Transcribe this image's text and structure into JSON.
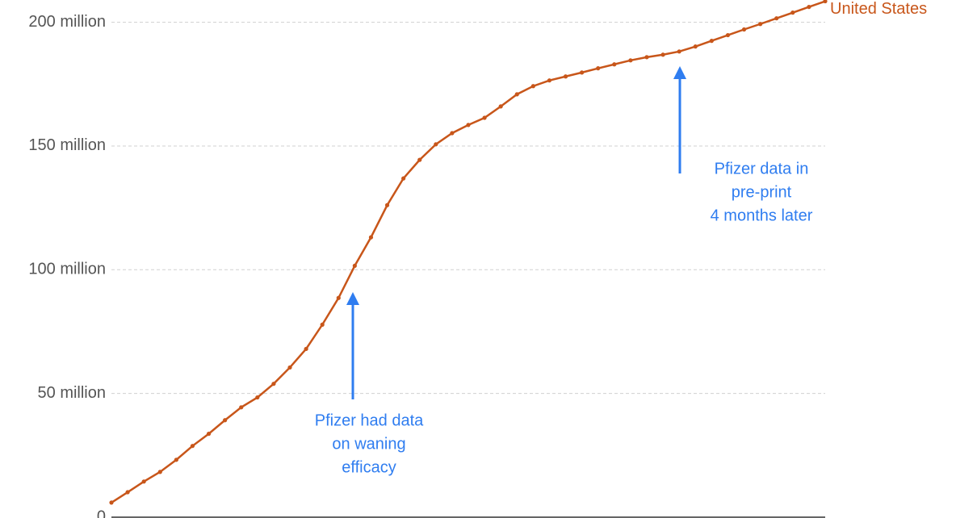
{
  "chart_data": {
    "type": "line",
    "categories": [
      null,
      null,
      null,
      null,
      null,
      null,
      null,
      null,
      null,
      null,
      null,
      null,
      null,
      null,
      null,
      null,
      null,
      null,
      null,
      null,
      null,
      null,
      null,
      null,
      null,
      null,
      null,
      null,
      null,
      null,
      null,
      null,
      null,
      null,
      null,
      null,
      null,
      null,
      null,
      null,
      null,
      null,
      null,
      null,
      null
    ],
    "series": [
      {
        "name": "United States",
        "color": "#c8561a",
        "values": [
          5.9,
          10.1,
          14.4,
          18.3,
          23.2,
          28.8,
          33.7,
          39.2,
          44.4,
          48.4,
          53.9,
          60.5,
          68.0,
          77.8,
          88.6,
          101.6,
          113.1,
          126.1,
          136.9,
          144.4,
          150.7,
          155.2,
          158.5,
          161.4,
          166.0,
          170.9,
          174.2,
          176.5,
          178.1,
          179.7,
          181.4,
          183.0,
          184.6,
          185.9,
          186.9,
          188.2,
          190.2,
          192.5,
          194.8,
          197.1,
          199.3,
          201.6,
          203.9,
          206.2,
          208.5
        ]
      }
    ],
    "ylim": [
      0,
      209
    ],
    "yticks": [
      0,
      {
        "value": 50,
        "label": "50 million"
      },
      {
        "value": 100,
        "label": "100 million"
      },
      {
        "value": 150,
        "label": "150 million"
      },
      {
        "value": 200,
        "label": "200 million"
      }
    ],
    "grid": true,
    "annotations": [
      {
        "text": [
          "Pfizer had data",
          "on waning",
          "efficacy"
        ],
        "color": "#2f7df0"
      },
      {
        "text": [
          "Pfizer data in",
          "pre-print",
          "4 months later"
        ],
        "color": "#2f7df0"
      }
    ]
  }
}
